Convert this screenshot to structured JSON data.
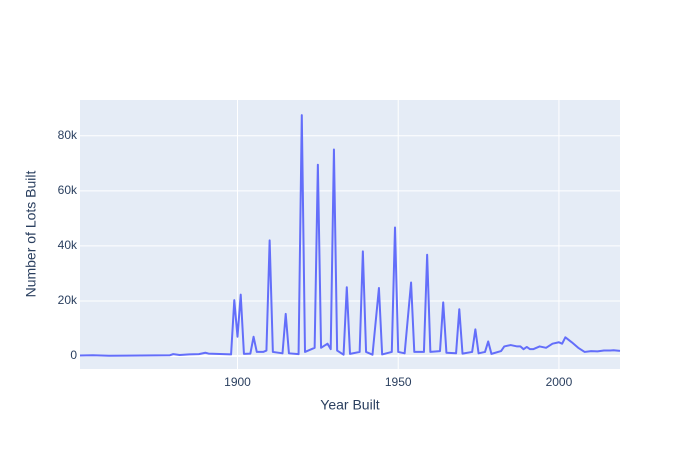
{
  "chart_data": {
    "type": "line",
    "x_label": "Year Built",
    "y_label": "Number of Lots Built",
    "x": [
      1851,
      1855,
      1860,
      1870,
      1879,
      1880,
      1882,
      1885,
      1888,
      1890,
      1891,
      1898,
      1899,
      1900,
      1901,
      1902,
      1904,
      1905,
      1906,
      1908,
      1909,
      1910,
      1911,
      1914,
      1915,
      1916,
      1919,
      1920,
      1921,
      1924,
      1925,
      1926,
      1928,
      1929,
      1930,
      1931,
      1933,
      1934,
      1935,
      1938,
      1939,
      1940,
      1942,
      1944,
      1945,
      1948,
      1949,
      1950,
      1952,
      1954,
      1955,
      1958,
      1959,
      1960,
      1963,
      1964,
      1965,
      1968,
      1969,
      1970,
      1973,
      1974,
      1975,
      1977,
      1978,
      1979,
      1982,
      1983,
      1985,
      1987,
      1988,
      1989,
      1990,
      1991,
      1992,
      1994,
      1996,
      1998,
      2000,
      2001,
      2002,
      2004,
      2006,
      2008,
      2010,
      2012,
      2014,
      2016,
      2017,
      2019
    ],
    "series": [
      {
        "name": "Number of Lots Built",
        "color": "#636efa",
        "values": [
          200,
          300,
          100,
          200,
          300,
          700,
          400,
          600,
          700,
          1200,
          900,
          600,
          20300,
          7000,
          22300,
          800,
          900,
          7000,
          1500,
          1500,
          2000,
          42000,
          1500,
          1000,
          15300,
          1000,
          700,
          87500,
          1500,
          3000,
          69500,
          3000,
          4500,
          2500,
          75000,
          2000,
          500,
          25000,
          800,
          1500,
          38000,
          1500,
          500,
          24700,
          600,
          1500,
          46700,
          1500,
          1000,
          26700,
          1500,
          1500,
          36800,
          1500,
          1800,
          19500,
          1200,
          1000,
          17000,
          900,
          1500,
          9700,
          1000,
          1500,
          5300,
          800,
          1800,
          3500,
          4000,
          3500,
          3500,
          2500,
          3300,
          2500,
          2500,
          3500,
          3000,
          4500,
          5000,
          4500,
          6800,
          5000,
          3000,
          1500,
          1800,
          1700,
          2000,
          2000,
          2100,
          1900
        ]
      }
    ],
    "xlim": [
      1851,
      2019
    ],
    "xticks": [
      1900,
      1950,
      2000
    ],
    "ylim": [
      -4700,
      93000
    ],
    "yticks": [
      0,
      {
        "value": 20000,
        "label": "20k"
      },
      {
        "value": 40000,
        "label": "40k"
      },
      {
        "value": 60000,
        "label": "60k"
      },
      {
        "value": 80000,
        "label": "80k"
      }
    ],
    "grid": true
  }
}
